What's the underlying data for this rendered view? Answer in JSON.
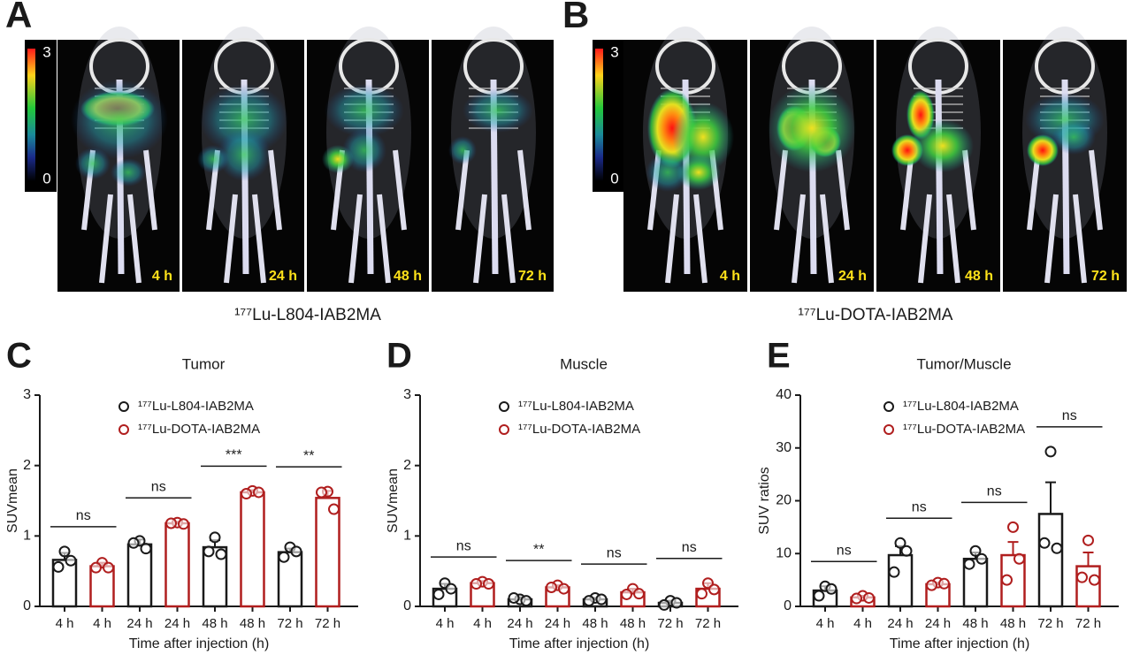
{
  "figure": {
    "panels": [
      {
        "label": "A",
        "caption": "¹⁷⁷Lu-L804-IAB2MA",
        "colorbar_ticks": [
          3,
          0
        ],
        "times": [
          "4 h",
          "24 h",
          "48 h",
          "72 h"
        ]
      },
      {
        "label": "B",
        "caption": "¹⁷⁷Lu-DOTA-IAB2MA",
        "colorbar_ticks": [
          3,
          0
        ],
        "times": [
          "4 h",
          "24 h",
          "48 h",
          "72 h"
        ]
      }
    ]
  },
  "chart_data": [
    {
      "type": "bar",
      "panel": "C",
      "title": "Tumor",
      "ylabel": "SUVmean",
      "xlabel": "Time after injection (h)",
      "categories": [
        "4 h",
        "24 h",
        "48 h",
        "72 h"
      ],
      "ylim": [
        0,
        3
      ],
      "yticks": [
        0,
        1,
        2,
        3
      ],
      "annotations": [
        "ns",
        "ns",
        "***",
        "**"
      ],
      "series": [
        {
          "name": "¹⁷⁷Lu-L804-IAB2MA",
          "color": "#1a1a1a",
          "values": [
            0.66,
            0.88,
            0.84,
            0.77
          ],
          "errors": [
            0.1,
            0.07,
            0.1,
            0.05
          ],
          "points": [
            [
              0.78,
              0.56,
              0.65
            ],
            [
              0.93,
              0.9,
              0.82
            ],
            [
              0.98,
              0.78,
              0.74
            ],
            [
              0.84,
              0.7,
              0.78
            ]
          ]
        },
        {
          "name": "¹⁷⁷Lu-DOTA-IAB2MA",
          "color": "#b01e1e",
          "values": [
            0.57,
            1.18,
            1.62,
            1.54
          ],
          "errors": [
            0.05,
            0.02,
            0.03,
            0.1
          ],
          "points": [
            [
              0.62,
              0.55,
              0.55
            ],
            [
              1.19,
              1.18,
              1.17
            ],
            [
              1.64,
              1.6,
              1.62
            ],
            [
              1.63,
              1.62,
              1.38
            ]
          ]
        }
      ]
    },
    {
      "type": "bar",
      "panel": "D",
      "title": "Muscle",
      "ylabel": "SUVmean",
      "xlabel": "Time after injection (h)",
      "categories": [
        "4 h",
        "24 h",
        "48 h",
        "72 h"
      ],
      "ylim": [
        0,
        3
      ],
      "yticks": [
        0,
        1,
        2,
        3
      ],
      "annotations": [
        "ns",
        "**",
        "ns",
        "ns"
      ],
      "series": [
        {
          "name": "¹⁷⁷Lu-L804-IAB2MA",
          "color": "#1a1a1a",
          "values": [
            0.25,
            0.1,
            0.1,
            0.05
          ],
          "errors": [
            0.07,
            0.03,
            0.02,
            0.03
          ],
          "points": [
            [
              0.33,
              0.17,
              0.25
            ],
            [
              0.1,
              0.12,
              0.08
            ],
            [
              0.12,
              0.08,
              0.1
            ],
            [
              0.08,
              0.02,
              0.05
            ]
          ]
        },
        {
          "name": "¹⁷⁷Lu-DOTA-IAB2MA",
          "color": "#b01e1e",
          "values": [
            0.33,
            0.27,
            0.2,
            0.25
          ],
          "errors": [
            0.03,
            0.03,
            0.05,
            0.08
          ],
          "points": [
            [
              0.35,
              0.32,
              0.32
            ],
            [
              0.3,
              0.27,
              0.25
            ],
            [
              0.25,
              0.17,
              0.18
            ],
            [
              0.33,
              0.18,
              0.24
            ]
          ]
        }
      ]
    },
    {
      "type": "bar",
      "panel": "E",
      "title": "Tumor/Muscle",
      "ylabel": "SUV ratios",
      "xlabel": "Time after injection (h)",
      "categories": [
        "4 h",
        "24 h",
        "48 h",
        "72 h"
      ],
      "ylim": [
        0,
        40
      ],
      "yticks": [
        0,
        10,
        20,
        30,
        40
      ],
      "annotations": [
        "ns",
        "ns",
        "ns",
        "ns"
      ],
      "series": [
        {
          "name": "¹⁷⁷Lu-L804-IAB2MA",
          "color": "#1a1a1a",
          "values": [
            3,
            9.7,
            9,
            17.5
          ],
          "errors": [
            0.8,
            1.7,
            1.2,
            6
          ],
          "points": [
            [
              3.8,
              2,
              3.3
            ],
            [
              12,
              6.5,
              10.5
            ],
            [
              10.5,
              8,
              9
            ],
            [
              29.3,
              12,
              11
            ]
          ]
        },
        {
          "name": "¹⁷⁷Lu-DOTA-IAB2MA",
          "color": "#b01e1e",
          "values": [
            1.7,
            4.2,
            9.7,
            7.6
          ],
          "errors": [
            0.3,
            0.3,
            2.5,
            2.6
          ],
          "points": [
            [
              2,
              1.5,
              1.6
            ],
            [
              4.5,
              4,
              4.3
            ],
            [
              15,
              5,
              9
            ],
            [
              12.5,
              5.5,
              5
            ]
          ]
        }
      ]
    }
  ]
}
